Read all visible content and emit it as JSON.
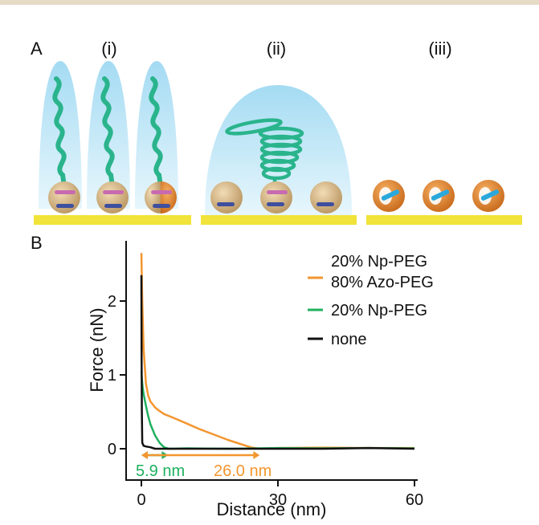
{
  "panel_a": {
    "label": "A",
    "sub_labels": [
      "(i)",
      "(ii)",
      "(iii)"
    ]
  },
  "panel_b": {
    "label": "B"
  },
  "colors": {
    "top_rule": "#e6dcc6",
    "halo": "#8fd0ec",
    "helix": "#2ab48c",
    "substrate": "#f1e339",
    "ring_light": "#d8bb8e",
    "ring_orange": "#e98a25",
    "rod_blue": "#2aa8dc",
    "rod_pink": "#c86ab0",
    "rod_navy": "#3e4f9f",
    "orange": "#f3962f",
    "green": "#1fb05f",
    "black": "#111111"
  },
  "chart_data": {
    "type": "line",
    "title": "",
    "xlabel": "Distance (nm)",
    "ylabel": "Force (nN)",
    "xlim": [
      -3,
      62
    ],
    "ylim": [
      -0.15,
      2.7
    ],
    "x_ticks": [
      0,
      30,
      60
    ],
    "y_ticks": [
      0,
      1,
      2
    ],
    "legend_position": "top-right",
    "series": [
      {
        "name": "20% Np-PEG\n80% Azo-PEG",
        "legend_lines": [
          "20% Np-PEG",
          "80% Azo-PEG"
        ],
        "color": "#f3962f",
        "x": [
          0,
          0.2,
          0.5,
          1,
          1.5,
          2,
          3,
          4,
          5,
          7,
          10,
          13,
          16,
          19,
          22,
          24,
          26,
          28,
          30,
          40,
          50,
          60
        ],
        "y": [
          2.65,
          2.0,
          1.35,
          0.88,
          0.72,
          0.64,
          0.56,
          0.51,
          0.47,
          0.42,
          0.34,
          0.26,
          0.19,
          0.12,
          0.06,
          0.02,
          0.0,
          0.005,
          0.01,
          0.015,
          0.01,
          0.01
        ]
      },
      {
        "name": "20% Np-PEG",
        "color": "#1fb05f",
        "x": [
          0,
          0.1,
          0.3,
          0.5,
          1,
          1.5,
          2,
          3,
          4,
          5,
          6,
          10,
          20,
          30,
          40,
          50,
          60
        ],
        "y": [
          1.05,
          0.95,
          0.82,
          0.74,
          0.58,
          0.44,
          0.33,
          0.18,
          0.08,
          0.02,
          0.0,
          0.005,
          0.0,
          0.01,
          0.005,
          0.01,
          0.005
        ]
      },
      {
        "name": "none",
        "color": "#111111",
        "x": [
          0,
          0.05,
          0.1,
          0.2,
          0.5,
          1,
          2,
          3,
          10,
          20,
          30,
          40,
          50,
          60
        ],
        "y": [
          2.35,
          1.2,
          0.5,
          0.08,
          0.04,
          0.03,
          0.02,
          0.0,
          0.0,
          0.0,
          0.0,
          0.0,
          0.01,
          0.0
        ]
      }
    ],
    "annotations": [
      {
        "text": "5.9 nm",
        "color": "#1fb05f",
        "x_start": 0,
        "x_end": 5.9,
        "y": -0.08
      },
      {
        "text": "26.0 nm",
        "color": "#f3962f",
        "x_start": 0,
        "x_end": 26.0,
        "y": -0.08
      }
    ]
  }
}
